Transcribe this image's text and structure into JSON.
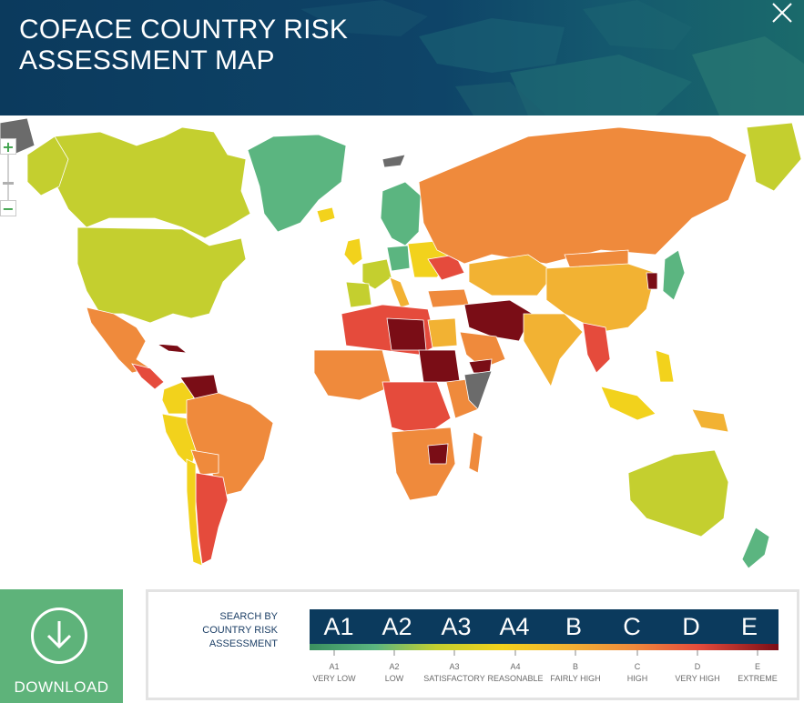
{
  "header": {
    "title": "COFACE COUNTRY RISK ASSESSMENT MAP"
  },
  "download": {
    "label": "DOWNLOAD"
  },
  "legend": {
    "search_label": "SEARCH BY COUNTRY RISK ASSESSMENT",
    "grades": [
      {
        "code": "A1",
        "caption": "VERY LOW",
        "color": "#3a8f5f"
      },
      {
        "code": "A2",
        "caption": "LOW",
        "color": "#5bb580"
      },
      {
        "code": "A3",
        "caption": "SATISFACTORY",
        "color": "#c4cf2f"
      },
      {
        "code": "A4",
        "caption": "REASONABLE",
        "color": "#f2d21c"
      },
      {
        "code": "B",
        "caption": "FAIRLY HIGH",
        "color": "#f2b233"
      },
      {
        "code": "C",
        "caption": "HIGH",
        "color": "#ef8a3c"
      },
      {
        "code": "D",
        "caption": "VERY HIGH",
        "color": "#e54b3c"
      },
      {
        "code": "E",
        "caption": "EXTREME",
        "color": "#7a0d16"
      }
    ]
  },
  "map": {
    "colors": {
      "A1": "#3a8f5f",
      "A2": "#5bb580",
      "A3": "#c4cf2f",
      "A4": "#f2d21c",
      "B": "#f2b233",
      "C": "#ef8a3c",
      "D": "#e54b3c",
      "E": "#7a0d16",
      "none": "#6b6b6b"
    }
  },
  "zoom": {
    "in_symbol": "+",
    "out_symbol": "−"
  },
  "icons": {
    "close": "close-icon",
    "download": "download-arrow-icon"
  }
}
